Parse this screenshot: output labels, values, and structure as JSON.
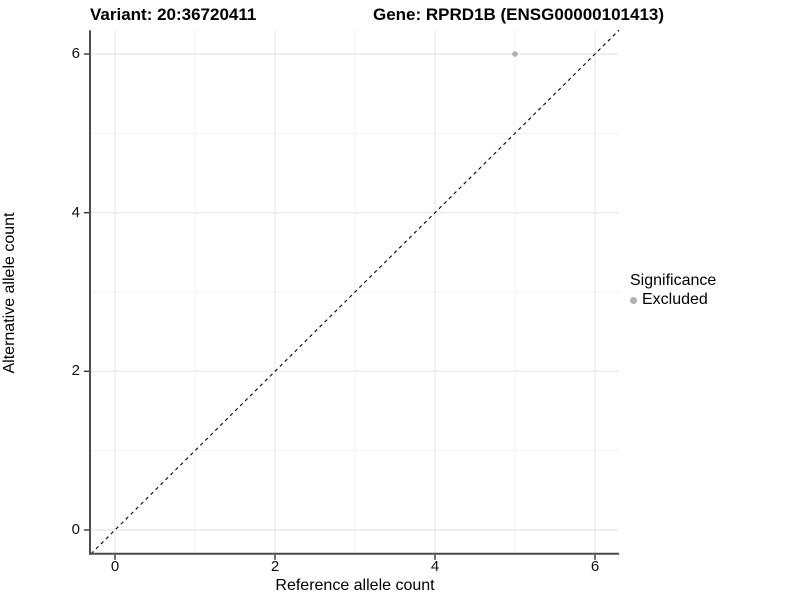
{
  "header": {
    "variant_title": "Variant: 20:36720411",
    "gene_title": "Gene: RPRD1B (ENSG00000101413)"
  },
  "axes": {
    "x_label": "Reference allele count",
    "y_label": "Alternative allele count"
  },
  "legend": {
    "title": "Significance",
    "items": [
      {
        "label": "Excluded",
        "color": "#b0b0b0"
      }
    ]
  },
  "colors": {
    "background": "#ffffff",
    "axis_line": "#4d4d4d",
    "tick_mark": "#333333",
    "grid_major": "#e8e8e8",
    "grid_minor": "#f3f3f3",
    "reference_line": "#000000",
    "point": "#b0b0b0"
  },
  "chart_data": {
    "type": "scatter",
    "title": "Variant: 20:36720411  /  Gene: RPRD1B (ENSG00000101413)",
    "xlabel": "Reference allele count",
    "ylabel": "Alternative allele count",
    "xlim": [
      -0.3,
      6.3
    ],
    "ylim": [
      -0.3,
      6.3
    ],
    "x_ticks": [
      0,
      2,
      4,
      6
    ],
    "y_ticks": [
      0,
      2,
      4,
      6
    ],
    "x_minor_ticks": [
      1,
      3,
      5
    ],
    "y_minor_ticks": [
      1,
      3,
      5
    ],
    "grid": true,
    "legend_position": "right",
    "series": [
      {
        "name": "Excluded",
        "color": "#b0b0b0",
        "points": [
          {
            "x": 5,
            "y": 6
          }
        ]
      }
    ],
    "reference_line": {
      "type": "identity",
      "slope": 1,
      "intercept": 0,
      "style": "dashed",
      "color": "#000000"
    }
  }
}
